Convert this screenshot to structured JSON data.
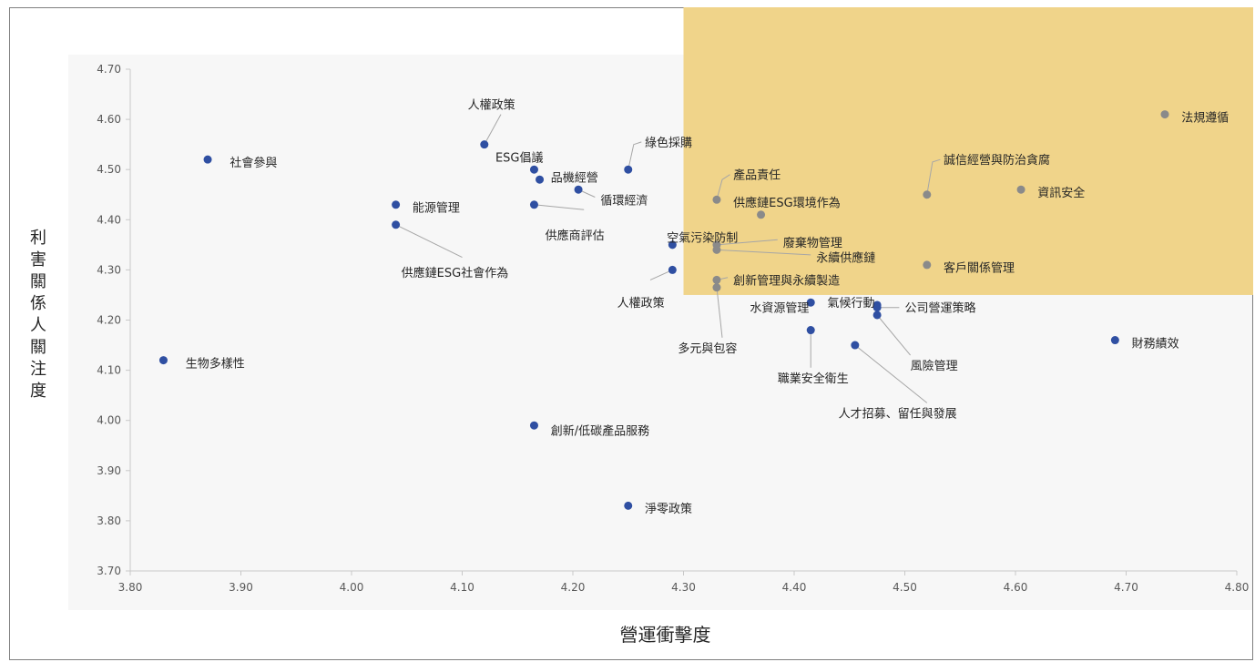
{
  "chart_data": {
    "type": "scatter",
    "xlabel": "營運衝擊度",
    "ylabel": "利害關係人關注度",
    "xlim": [
      3.8,
      4.8
    ],
    "ylim": [
      3.7,
      4.7
    ],
    "xticks": [
      "3.80",
      "3.90",
      "4.00",
      "4.10",
      "4.20",
      "4.30",
      "4.40",
      "4.50",
      "4.60",
      "4.70",
      "4.80"
    ],
    "yticks": [
      "3.70",
      "3.80",
      "3.90",
      "4.00",
      "4.10",
      "4.20",
      "4.30",
      "4.40",
      "4.50",
      "4.60",
      "4.70"
    ],
    "grid": false,
    "highlight_region": {
      "x": [
        4.3,
        4.8
      ],
      "y": [
        4.25,
        4.7
      ],
      "color": "#f0d48a"
    },
    "marker_colors": {
      "outside": "#2f4fa2",
      "inside": "#8a8a8a"
    },
    "points": [
      {
        "label": "社會參與",
        "x": 3.87,
        "y": 4.52
      },
      {
        "label": "生物多樣性",
        "x": 3.83,
        "y": 4.12
      },
      {
        "label": "能源管理",
        "x": 4.04,
        "y": 4.43
      },
      {
        "label": "供應鏈ESG社會作為",
        "x": 4.04,
        "y": 4.39
      },
      {
        "label": "人權政策",
        "x": 4.12,
        "y": 4.55
      },
      {
        "label": "ESG倡議",
        "x": 4.165,
        "y": 4.5
      },
      {
        "label": "品機經營",
        "x": 4.17,
        "y": 4.48
      },
      {
        "label": "循環經濟",
        "x": 4.205,
        "y": 4.46
      },
      {
        "label": "供應商評估",
        "x": 4.165,
        "y": 4.43
      },
      {
        "label": "綠色採購",
        "x": 4.25,
        "y": 4.5
      },
      {
        "label": "創新/低碳產品服務",
        "x": 4.165,
        "y": 3.99
      },
      {
        "label": "淨零政策",
        "x": 4.25,
        "y": 3.83
      },
      {
        "label": "空氣污染防制",
        "x": 4.29,
        "y": 4.35
      },
      {
        "label": "人權政策",
        "x": 4.29,
        "y": 4.3
      },
      {
        "label": "產品責任",
        "x": 4.33,
        "y": 4.44
      },
      {
        "label": "供應鏈ESG環境作為",
        "x": 4.37,
        "y": 4.41
      },
      {
        "label": "廢棄物管理",
        "x": 4.33,
        "y": 4.35
      },
      {
        "label": "永續供應鏈",
        "x": 4.33,
        "y": 4.34
      },
      {
        "label": "創新管理與永續製造",
        "x": 4.33,
        "y": 4.28
      },
      {
        "label": "多元與包容",
        "x": 4.33,
        "y": 4.265
      },
      {
        "label": "水資源管理",
        "x": 4.415,
        "y": 4.235
      },
      {
        "label": "氣候行動",
        "x": 4.475,
        "y": 4.23
      },
      {
        "label": "公司營運策略",
        "x": 4.475,
        "y": 4.225
      },
      {
        "label": "風險管理",
        "x": 4.475,
        "y": 4.21
      },
      {
        "label": "職業安全衛生",
        "x": 4.415,
        "y": 4.18
      },
      {
        "label": "人才招募、留任與發展",
        "x": 4.455,
        "y": 4.15
      },
      {
        "label": "財務績效",
        "x": 4.69,
        "y": 4.16
      },
      {
        "label": "客戶關係管理",
        "x": 4.52,
        "y": 4.31
      },
      {
        "label": "誠信經營與防治貪腐",
        "x": 4.52,
        "y": 4.45
      },
      {
        "label": "資訊安全",
        "x": 4.605,
        "y": 4.46
      },
      {
        "label": "法規遵循",
        "x": 4.735,
        "y": 4.61
      }
    ],
    "labels": [
      {
        "text": "社會參與",
        "x": 3.89,
        "y": 4.515,
        "anchor": "start"
      },
      {
        "text": "生物多樣性",
        "x": 3.85,
        "y": 4.115,
        "anchor": "start"
      },
      {
        "text": "能源管理",
        "x": 4.055,
        "y": 4.425,
        "anchor": "start"
      },
      {
        "text": "供應鏈ESG社會作為",
        "x": 4.045,
        "y": 4.295,
        "anchor": "start",
        "leader": [
          [
            4.04,
            4.39
          ],
          [
            4.1,
            4.325
          ]
        ]
      },
      {
        "text": "人權政策",
        "x": 4.105,
        "y": 4.63,
        "anchor": "start",
        "leader": [
          [
            4.12,
            4.55
          ],
          [
            4.135,
            4.61
          ]
        ]
      },
      {
        "text": "ESG倡議",
        "x": 4.13,
        "y": 4.525,
        "anchor": "start"
      },
      {
        "text": "品機經營",
        "x": 4.18,
        "y": 4.485,
        "anchor": "start"
      },
      {
        "text": "循環經濟",
        "x": 4.225,
        "y": 4.44,
        "anchor": "start",
        "leader": [
          [
            4.205,
            4.46
          ],
          [
            4.22,
            4.445
          ]
        ]
      },
      {
        "text": "供應商評估",
        "x": 4.175,
        "y": 4.37,
        "anchor": "start",
        "leader": [
          [
            4.165,
            4.43
          ],
          [
            4.21,
            4.42
          ]
        ]
      },
      {
        "text": "綠色採購",
        "x": 4.265,
        "y": 4.555,
        "anchor": "start",
        "leader": [
          [
            4.25,
            4.5
          ],
          [
            4.255,
            4.55
          ],
          [
            4.262,
            4.555
          ]
        ]
      },
      {
        "text": "創新/低碳產品服務",
        "x": 4.18,
        "y": 3.98,
        "anchor": "start"
      },
      {
        "text": "淨零政策",
        "x": 4.265,
        "y": 3.825,
        "anchor": "start"
      },
      {
        "text": "空氣污染防制",
        "x": 4.285,
        "y": 4.365,
        "anchor": "start"
      },
      {
        "text": "人權政策",
        "x": 4.24,
        "y": 4.235,
        "anchor": "start",
        "leader": [
          [
            4.29,
            4.3
          ],
          [
            4.27,
            4.28
          ]
        ]
      },
      {
        "text": "產品責任",
        "x": 4.345,
        "y": 4.49,
        "anchor": "start",
        "leader": [
          [
            4.33,
            4.44
          ],
          [
            4.335,
            4.48
          ],
          [
            4.342,
            4.49
          ]
        ]
      },
      {
        "text": "供應鏈ESG環境作為",
        "x": 4.345,
        "y": 4.435,
        "anchor": "start"
      },
      {
        "text": "廢棄物管理",
        "x": 4.39,
        "y": 4.355,
        "anchor": "start",
        "leader": [
          [
            4.33,
            4.35
          ],
          [
            4.385,
            4.36
          ]
        ]
      },
      {
        "text": "永續供應鏈",
        "x": 4.42,
        "y": 4.325,
        "anchor": "start",
        "leader": [
          [
            4.33,
            4.34
          ],
          [
            4.415,
            4.33
          ]
        ]
      },
      {
        "text": "創新管理與永續製造",
        "x": 4.345,
        "y": 4.28,
        "anchor": "start",
        "leader": [
          [
            4.33,
            4.28
          ],
          [
            4.34,
            4.285
          ]
        ]
      },
      {
        "text": "多元與包容",
        "x": 4.295,
        "y": 4.145,
        "anchor": "start",
        "leader": [
          [
            4.33,
            4.265
          ],
          [
            4.335,
            4.165
          ]
        ]
      },
      {
        "text": "水資源管理",
        "x": 4.36,
        "y": 4.225,
        "anchor": "start"
      },
      {
        "text": "氣候行動",
        "x": 4.43,
        "y": 4.235,
        "anchor": "start"
      },
      {
        "text": "公司營運策略",
        "x": 4.5,
        "y": 4.225,
        "anchor": "start",
        "leader": [
          [
            4.475,
            4.225
          ],
          [
            4.495,
            4.225
          ]
        ]
      },
      {
        "text": "風險管理",
        "x": 4.505,
        "y": 4.11,
        "anchor": "start",
        "leader": [
          [
            4.475,
            4.21
          ],
          [
            4.505,
            4.13
          ]
        ]
      },
      {
        "text": "職業安全衛生",
        "x": 4.385,
        "y": 4.085,
        "anchor": "start",
        "leader": [
          [
            4.415,
            4.18
          ],
          [
            4.415,
            4.105
          ]
        ]
      },
      {
        "text": "人才招募、留任與發展",
        "x": 4.44,
        "y": 4.015,
        "anchor": "start",
        "leader": [
          [
            4.455,
            4.15
          ],
          [
            4.52,
            4.035
          ]
        ]
      },
      {
        "text": "財務績效",
        "x": 4.705,
        "y": 4.155,
        "anchor": "start"
      },
      {
        "text": "客戶關係管理",
        "x": 4.535,
        "y": 4.305,
        "anchor": "start"
      },
      {
        "text": "誠信經營與防治貪腐",
        "x": 4.535,
        "y": 4.52,
        "anchor": "start",
        "leader": [
          [
            4.52,
            4.45
          ],
          [
            4.525,
            4.515
          ],
          [
            4.532,
            4.52
          ]
        ]
      },
      {
        "text": "資訊安全",
        "x": 4.62,
        "y": 4.455,
        "anchor": "start"
      },
      {
        "text": "法規遵循",
        "x": 4.75,
        "y": 4.605,
        "anchor": "start"
      }
    ]
  }
}
